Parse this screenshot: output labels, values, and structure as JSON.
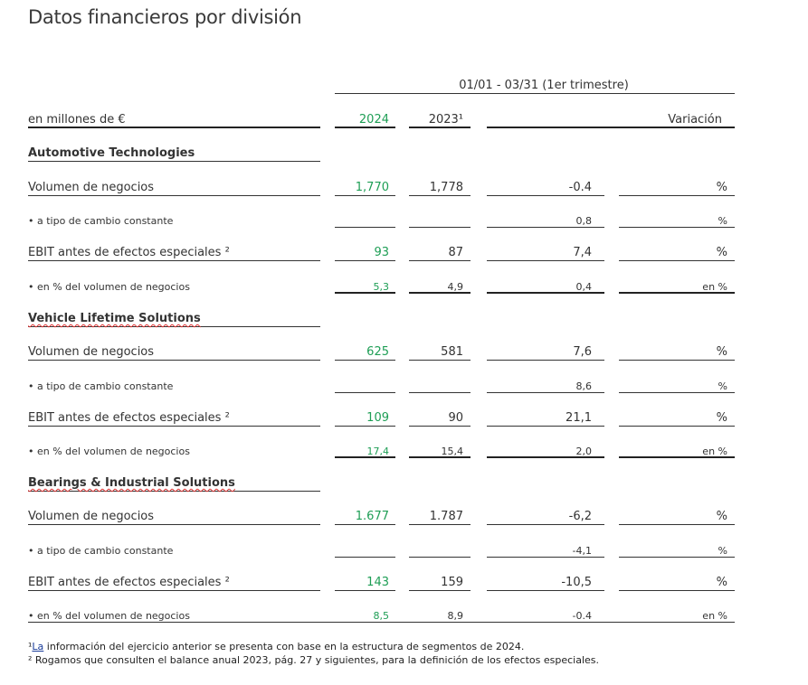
{
  "title": "Datos financieros por división",
  "period": "01/01 - 03/31 (1er trimestre)",
  "header": {
    "label": "en millones de €",
    "col_2024": "2024",
    "col_2023": "2023¹",
    "col_var": "Variación"
  },
  "sections": [
    {
      "name": "Automotive Technologies",
      "rows": [
        {
          "label": "Volumen de negocios",
          "v2024": "1,770",
          "v2023": "1,778",
          "var": "-0.4",
          "unit": "%"
        },
        {
          "label": "• a tipo de cambio constante",
          "v2024": "",
          "v2023": "",
          "var": "0,8",
          "unit": "%"
        },
        {
          "label": "EBIT antes de efectos especiales ²",
          "v2024": "93",
          "v2023": "87",
          "var": "7,4",
          "unit": "%"
        },
        {
          "label": "• en % del volumen de negocios",
          "v2024": "5,3",
          "v2023": "4,9",
          "var": "0,4",
          "unit": "en %"
        }
      ]
    },
    {
      "name": "Vehicle Lifetime Solutions",
      "rows": [
        {
          "label": "Volumen de negocios",
          "v2024": "625",
          "v2023": "581",
          "var": "7,6",
          "unit": "%"
        },
        {
          "label": "• a tipo de cambio constante",
          "v2024": "",
          "v2023": "",
          "var": "8,6",
          "unit": "%"
        },
        {
          "label": "EBIT antes de efectos especiales ²",
          "v2024": "109",
          "v2023": "90",
          "var": "21,1",
          "unit": "%"
        },
        {
          "label": "• en % del volumen de negocios",
          "v2024": "17,4",
          "v2023": "15,4",
          "var": "2,0",
          "unit": "en %"
        }
      ]
    },
    {
      "name": "Bearings & Industrial Solutions",
      "rows": [
        {
          "label": "Volumen de negocios",
          "v2024": "1.677",
          "v2023": "1.787",
          "var": "-6,2",
          "unit": "%"
        },
        {
          "label": "• a tipo de cambio constante",
          "v2024": "",
          "v2023": "",
          "var": "-4,1",
          "unit": "%"
        },
        {
          "label": "EBIT antes de efectos especiales ²",
          "v2024": "143",
          "v2023": "159",
          "var": "-10,5",
          "unit": "%"
        },
        {
          "label": "• en % del volumen de negocios",
          "v2024": "8,5",
          "v2023": "8,9",
          "var": "-0.4",
          "unit": "en %"
        }
      ]
    }
  ],
  "footnotes": {
    "fn1_mark": "¹",
    "fn1_link": "La",
    "fn1_text": " información del ejercicio anterior se presenta con base en la estructura de segmentos de 2024.",
    "fn2": "² Rogamos que consulten el balance anual 2023, pág. 27 y siguientes, para la definición de los efectos especiales."
  }
}
